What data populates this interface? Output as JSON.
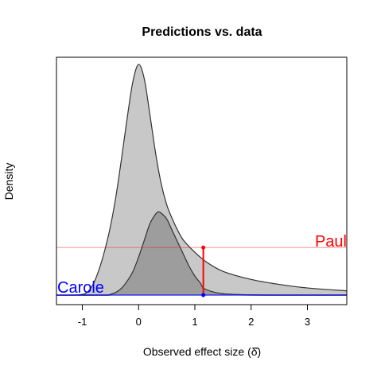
{
  "chart_data": {
    "type": "area",
    "title": "Predictions vs. data",
    "xlabel": "Observed effect size (δ̂)",
    "ylabel": "Density",
    "xlim": [
      -1.46,
      3.7
    ],
    "ylim": [
      -0.04,
      1.0
    ],
    "x_ticks": [
      -1,
      0,
      1,
      2,
      3
    ],
    "x_tick_labels": [
      "-1",
      "0",
      "1",
      "2",
      "3"
    ],
    "grid": false,
    "legend": "none",
    "series": [
      {
        "x": [
          -1.46,
          -1.2,
          -1.0,
          -0.9,
          -0.8,
          -0.7,
          -0.6,
          -0.5,
          -0.4,
          -0.3,
          -0.2,
          -0.1,
          0.0,
          0.1,
          0.2,
          0.3,
          0.4,
          0.5,
          0.6,
          0.7,
          0.8,
          1.0,
          1.2,
          1.5,
          2.0,
          2.5,
          3.0,
          3.7
        ],
        "y": [
          0.0,
          0.0,
          0.003,
          0.015,
          0.05,
          0.11,
          0.19,
          0.29,
          0.42,
          0.58,
          0.75,
          0.9,
          0.97,
          0.91,
          0.76,
          0.6,
          0.47,
          0.38,
          0.32,
          0.27,
          0.23,
          0.18,
          0.14,
          0.1,
          0.066,
          0.045,
          0.03,
          0.018
        ],
        "color": "#c8c8c8"
      },
      {
        "x": [
          -1.46,
          -0.6,
          -0.5,
          -0.4,
          -0.3,
          -0.2,
          -0.1,
          0.0,
          0.1,
          0.2,
          0.3,
          0.35,
          0.4,
          0.5,
          0.6,
          0.7,
          0.8,
          0.9,
          1.0,
          1.1,
          1.15,
          1.3,
          1.5,
          1.7,
          2.0,
          2.5,
          3.7
        ],
        "y": [
          0.0,
          0.0,
          0.004,
          0.012,
          0.03,
          0.06,
          0.1,
          0.16,
          0.23,
          0.3,
          0.34,
          0.35,
          0.345,
          0.32,
          0.27,
          0.22,
          0.17,
          0.12,
          0.08,
          0.05,
          0.03,
          0.015,
          0.006,
          0.003,
          0.001,
          0.0,
          0.0
        ],
        "color": "#8f8f8f"
      }
    ],
    "reference_lines": {
      "paul": {
        "label": "Paul",
        "y": 0.2,
        "color": "#ff0000"
      },
      "carole": {
        "label": "Carole",
        "y": 0.0,
        "color": "#0000ff"
      },
      "observed_x": 1.15
    }
  }
}
